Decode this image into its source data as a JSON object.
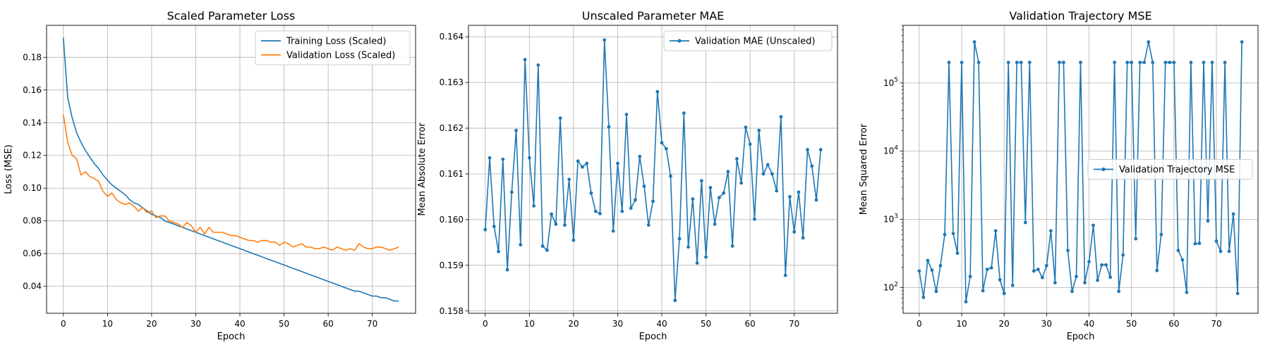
{
  "chart_data": [
    {
      "type": "line",
      "title": "Scaled Parameter Loss",
      "xlabel": "Epoch",
      "ylabel": "Loss (MSE)",
      "xlim": [
        -3.8,
        79.8
      ],
      "ylim": [
        0.0235,
        0.1995
      ],
      "xticks": [
        0,
        10,
        20,
        30,
        40,
        50,
        60,
        70
      ],
      "yticks": [
        0.04,
        0.06,
        0.08,
        0.1,
        0.12,
        0.14,
        0.16,
        0.18
      ],
      "ytick_format": "fixed2",
      "yscale": "linear",
      "grid": true,
      "legend": "top-right",
      "series": [
        {
          "name": "Training Loss (Scaled)",
          "color": "#1f77b4",
          "marker": false,
          "values": [
            0.192,
            0.155,
            0.143,
            0.134,
            0.128,
            0.123,
            0.119,
            0.115,
            0.112,
            0.108,
            0.105,
            0.102,
            0.1,
            0.098,
            0.096,
            0.093,
            0.091,
            0.09,
            0.088,
            0.086,
            0.084,
            0.083,
            0.082,
            0.08,
            0.079,
            0.078,
            0.077,
            0.076,
            0.075,
            0.074,
            0.073,
            0.072,
            0.071,
            0.07,
            0.069,
            0.068,
            0.067,
            0.066,
            0.065,
            0.064,
            0.063,
            0.062,
            0.061,
            0.06,
            0.059,
            0.058,
            0.057,
            0.056,
            0.055,
            0.054,
            0.053,
            0.052,
            0.051,
            0.05,
            0.049,
            0.048,
            0.047,
            0.046,
            0.045,
            0.044,
            0.043,
            0.042,
            0.041,
            0.04,
            0.039,
            0.038,
            0.037,
            0.037,
            0.036,
            0.035,
            0.034,
            0.034,
            0.033,
            0.033,
            0.032,
            0.031,
            0.031
          ]
        },
        {
          "name": "Validation Loss (Scaled)",
          "color": "#ff7f0e",
          "marker": false,
          "values": [
            0.145,
            0.128,
            0.12,
            0.118,
            0.108,
            0.11,
            0.107,
            0.106,
            0.104,
            0.098,
            0.095,
            0.097,
            0.093,
            0.091,
            0.09,
            0.091,
            0.089,
            0.086,
            0.088,
            0.085,
            0.086,
            0.082,
            0.083,
            0.083,
            0.08,
            0.079,
            0.078,
            0.076,
            0.079,
            0.077,
            0.073,
            0.076,
            0.072,
            0.076,
            0.073,
            0.073,
            0.073,
            0.072,
            0.071,
            0.071,
            0.07,
            0.069,
            0.068,
            0.068,
            0.067,
            0.068,
            0.068,
            0.067,
            0.067,
            0.065,
            0.067,
            0.066,
            0.064,
            0.065,
            0.066,
            0.064,
            0.064,
            0.063,
            0.063,
            0.064,
            0.063,
            0.062,
            0.064,
            0.063,
            0.062,
            0.063,
            0.062,
            0.066,
            0.064,
            0.063,
            0.063,
            0.064,
            0.064,
            0.063,
            0.062,
            0.063,
            0.064
          ]
        }
      ]
    },
    {
      "type": "line",
      "title": "Unscaled Parameter MAE",
      "xlabel": "Epoch",
      "ylabel": "Mean Absolute Error",
      "xlim": [
        -3.8,
        79.8
      ],
      "ylim": [
        0.15795,
        0.16425
      ],
      "xticks": [
        0,
        10,
        20,
        30,
        40,
        50,
        60,
        70
      ],
      "yticks": [
        0.158,
        0.159,
        0.16,
        0.161,
        0.162,
        0.163,
        0.164
      ],
      "ytick_format": "fixed3",
      "yscale": "linear",
      "grid": true,
      "legend": "top-right",
      "series": [
        {
          "name": "Validation MAE (Unscaled)",
          "color": "#1f77b4",
          "marker": true,
          "values": [
            0.15978,
            0.16135,
            0.15985,
            0.1593,
            0.16132,
            0.1589,
            0.1606,
            0.16195,
            0.15945,
            0.1635,
            0.16135,
            0.1603,
            0.16338,
            0.15942,
            0.15933,
            0.16012,
            0.1599,
            0.16222,
            0.15988,
            0.16088,
            0.15955,
            0.16128,
            0.16115,
            0.16123,
            0.16058,
            0.16018,
            0.16013,
            0.16393,
            0.16203,
            0.15975,
            0.16123,
            0.16018,
            0.1623,
            0.16025,
            0.16043,
            0.16138,
            0.16073,
            0.15988,
            0.1604,
            0.1628,
            0.16168,
            0.16155,
            0.16095,
            0.15823,
            0.15958,
            0.16233,
            0.1594,
            0.16045,
            0.15905,
            0.16085,
            0.15918,
            0.1607,
            0.1599,
            0.16048,
            0.16058,
            0.16105,
            0.15942,
            0.16133,
            0.1608,
            0.16202,
            0.16165,
            0.16001,
            0.16195,
            0.161,
            0.1612,
            0.161,
            0.16063,
            0.16225,
            0.15878,
            0.1605,
            0.15973,
            0.1606,
            0.1596,
            0.16153,
            0.16117,
            0.16043,
            0.16153
          ]
        }
      ]
    },
    {
      "type": "line",
      "title": "Validation Trajectory MSE",
      "xlabel": "Epoch",
      "ylabel": "Mean Squared Error",
      "xlim": [
        -3.8,
        79.8
      ],
      "ylim": [
        42,
        700000
      ],
      "xticks": [
        0,
        10,
        20,
        30,
        40,
        50,
        60,
        70
      ],
      "yticks": [
        100,
        1000,
        10000,
        100000
      ],
      "ytick_format": "pow10",
      "yscale": "log",
      "grid": true,
      "legend": "center-right",
      "series": [
        {
          "name": "Validation Trajectory MSE",
          "color": "#1f77b4",
          "marker": true,
          "values": [
            175,
            72,
            250,
            180,
            88,
            210,
            600,
            200000,
            620,
            320,
            200000,
            62,
            145,
            400000,
            200000,
            90,
            185,
            195,
            680,
            130,
            82,
            200000,
            108,
            200000,
            200000,
            900,
            200000,
            175,
            185,
            140,
            210,
            680,
            118,
            200000,
            200000,
            350,
            88,
            145,
            200000,
            118,
            240,
            820,
            128,
            215,
            215,
            142,
            200000,
            88,
            300,
            200000,
            200000,
            520,
            200000,
            200000,
            400000,
            200000,
            178,
            600,
            200000,
            200000,
            200000,
            350,
            255,
            85,
            200000,
            440,
            445,
            200000,
            950,
            200000,
            480,
            340,
            200000,
            340,
            1200,
            82,
            400000
          ]
        }
      ]
    }
  ]
}
